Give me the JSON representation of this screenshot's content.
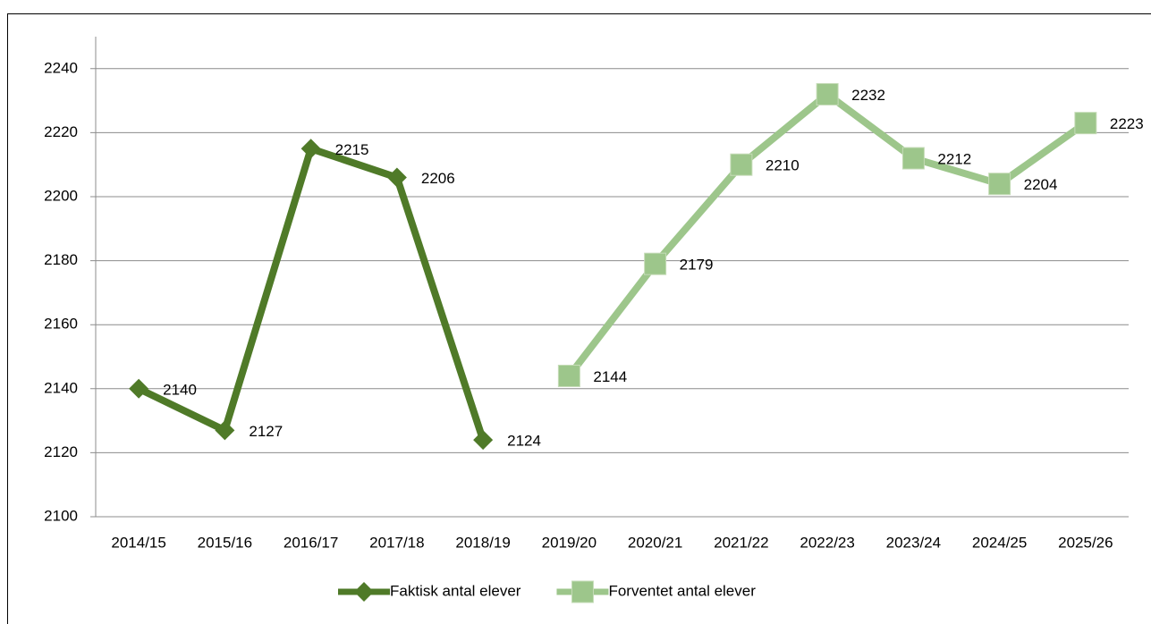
{
  "chart_data": {
    "type": "line",
    "categories": [
      "2014/15",
      "2015/16",
      "2016/17",
      "2017/18",
      "2018/19",
      "2019/20",
      "2020/21",
      "2021/22",
      "2022/23",
      "2023/24",
      "2024/25",
      "2025/26"
    ],
    "series": [
      {
        "name": "Faktisk antal elever",
        "color": "#4f7a28",
        "marker": "diamond",
        "values": [
          2140,
          2127,
          2215,
          2206,
          2124,
          null,
          null,
          null,
          null,
          null,
          null,
          null
        ]
      },
      {
        "name": "Forventet antal elever",
        "color": "#9dc68b",
        "marker": "square",
        "values": [
          null,
          null,
          null,
          null,
          null,
          2144,
          2179,
          2210,
          2232,
          2212,
          2204,
          2223
        ]
      }
    ],
    "ylim": [
      2100,
      2250
    ],
    "yticks": [
      2100,
      2120,
      2140,
      2160,
      2180,
      2200,
      2220,
      2240
    ],
    "grid": true,
    "legend": "bottom",
    "data_labels": true
  }
}
